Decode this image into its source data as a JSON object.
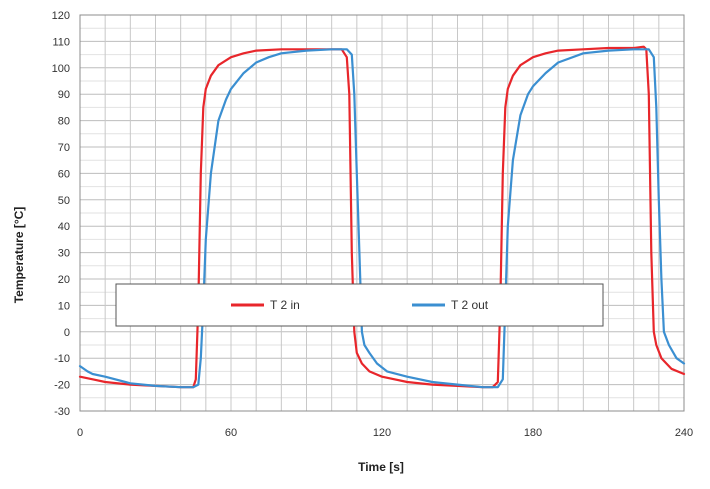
{
  "chart_data": {
    "type": "line",
    "xlabel": "Time [s]",
    "ylabel": "Temperature [°C]",
    "xlim": [
      0,
      240
    ],
    "ylim": [
      -30,
      120
    ],
    "xticks": [
      0,
      60,
      120,
      180,
      240
    ],
    "yticks": [
      -30,
      -20,
      -10,
      0,
      10,
      20,
      30,
      40,
      50,
      60,
      70,
      80,
      90,
      100,
      110,
      120
    ],
    "grid": true,
    "legend_position": "center",
    "series": [
      {
        "name": "T 2 in",
        "color": "#e8262b",
        "points": [
          [
            0,
            -17
          ],
          [
            5,
            -18
          ],
          [
            10,
            -19
          ],
          [
            20,
            -20
          ],
          [
            30,
            -20.5
          ],
          [
            40,
            -21
          ],
          [
            45,
            -21
          ],
          [
            46,
            -18
          ],
          [
            47,
            10
          ],
          [
            48,
            60
          ],
          [
            49,
            85
          ],
          [
            50,
            92
          ],
          [
            52,
            97
          ],
          [
            55,
            101
          ],
          [
            60,
            104
          ],
          [
            65,
            105.5
          ],
          [
            70,
            106.5
          ],
          [
            80,
            107
          ],
          [
            90,
            107
          ],
          [
            100,
            107
          ],
          [
            104,
            107
          ],
          [
            106,
            104
          ],
          [
            107,
            90
          ],
          [
            108,
            30
          ],
          [
            109,
            0
          ],
          [
            110,
            -8
          ],
          [
            112,
            -12
          ],
          [
            115,
            -15
          ],
          [
            120,
            -17
          ],
          [
            130,
            -19
          ],
          [
            140,
            -20
          ],
          [
            150,
            -20.5
          ],
          [
            160,
            -21
          ],
          [
            164,
            -21
          ],
          [
            166,
            -19
          ],
          [
            167,
            10
          ],
          [
            168,
            60
          ],
          [
            169,
            85
          ],
          [
            170,
            92
          ],
          [
            172,
            97
          ],
          [
            175,
            101
          ],
          [
            180,
            104
          ],
          [
            185,
            105.5
          ],
          [
            190,
            106.5
          ],
          [
            200,
            107
          ],
          [
            210,
            107.5
          ],
          [
            220,
            107.5
          ],
          [
            224,
            108
          ],
          [
            225,
            107
          ],
          [
            226,
            90
          ],
          [
            227,
            30
          ],
          [
            228,
            0
          ],
          [
            229,
            -5
          ],
          [
            231,
            -10
          ],
          [
            235,
            -14
          ],
          [
            240,
            -16
          ]
        ]
      },
      {
        "name": "T 2 out",
        "color": "#3b8fd1",
        "points": [
          [
            0,
            -13
          ],
          [
            3,
            -15
          ],
          [
            5,
            -16
          ],
          [
            10,
            -17
          ],
          [
            20,
            -19.5
          ],
          [
            30,
            -20.5
          ],
          [
            40,
            -21
          ],
          [
            45,
            -21
          ],
          [
            47,
            -20
          ],
          [
            48,
            -10
          ],
          [
            49,
            10
          ],
          [
            50,
            35
          ],
          [
            52,
            60
          ],
          [
            55,
            80
          ],
          [
            58,
            88
          ],
          [
            60,
            92
          ],
          [
            65,
            98
          ],
          [
            70,
            102
          ],
          [
            75,
            104
          ],
          [
            80,
            105.5
          ],
          [
            90,
            106.5
          ],
          [
            100,
            107
          ],
          [
            106,
            107
          ],
          [
            108,
            105
          ],
          [
            109,
            90
          ],
          [
            110,
            60
          ],
          [
            111,
            30
          ],
          [
            112,
            0
          ],
          [
            113,
            -5
          ],
          [
            115,
            -8
          ],
          [
            118,
            -12
          ],
          [
            122,
            -15
          ],
          [
            130,
            -17
          ],
          [
            140,
            -19
          ],
          [
            150,
            -20
          ],
          [
            160,
            -21
          ],
          [
            166,
            -21
          ],
          [
            168,
            -18
          ],
          [
            169,
            10
          ],
          [
            170,
            40
          ],
          [
            172,
            65
          ],
          [
            175,
            82
          ],
          [
            178,
            90
          ],
          [
            180,
            93
          ],
          [
            185,
            98
          ],
          [
            190,
            102
          ],
          [
            200,
            105.5
          ],
          [
            210,
            106.5
          ],
          [
            220,
            107
          ],
          [
            226,
            107
          ],
          [
            228,
            104
          ],
          [
            229,
            85
          ],
          [
            230,
            50
          ],
          [
            231,
            20
          ],
          [
            232,
            0
          ],
          [
            234,
            -5
          ],
          [
            237,
            -10
          ],
          [
            240,
            -12
          ]
        ]
      }
    ]
  }
}
